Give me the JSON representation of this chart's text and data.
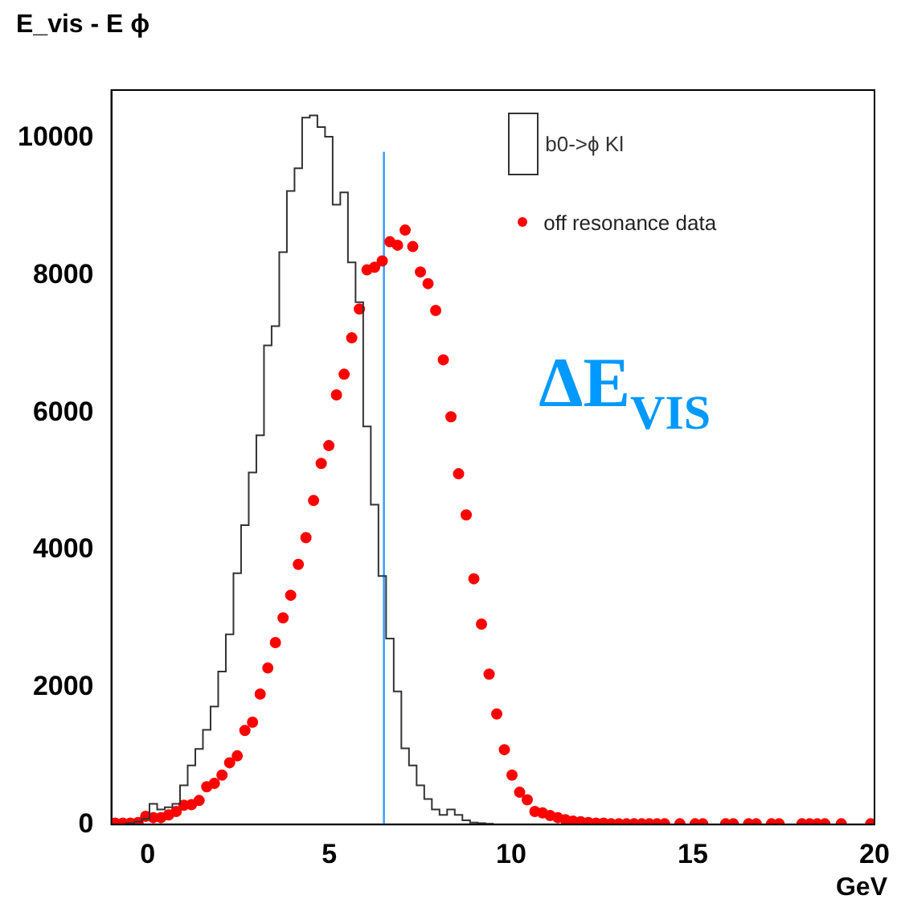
{
  "chart_data": {
    "type": "histogram",
    "title": "E_vis - E ϕ",
    "xlabel": "GeV",
    "annotations": [
      "ΔE$_{VIS}$"
    ],
    "xlim": [
      -1,
      20
    ],
    "xticks": [
      0,
      5,
      10,
      15,
      20
    ],
    "ylim": [
      0,
      10700
    ],
    "yticks": [
      0,
      2000,
      4000,
      6000,
      8000,
      10000
    ],
    "legend": "top right",
    "series": [
      {
        "name": "b0->ϕ Kl",
        "color": "#333333",
        "bins": [
          -1,
          -0.79,
          -0.58,
          -0.37,
          -0.16,
          0.05,
          0.26,
          0.47,
          0.68,
          0.89,
          1.1,
          1.31,
          1.52,
          1.73,
          1.94,
          2.15,
          2.36,
          2.57,
          2.78,
          2.99,
          3.2,
          3.41,
          3.62,
          3.83,
          4.04,
          4.25,
          4.46,
          4.67,
          4.88,
          5.09,
          5.3,
          5.51,
          5.72,
          5.93,
          6.14,
          6.35,
          6.56,
          6.77,
          6.98,
          7.19,
          7.4,
          7.61,
          7.82,
          8.03,
          8.24,
          8.45,
          8.66,
          8.87,
          9.08,
          9.29,
          9.5,
          9.71,
          9.92,
          10.13,
          10.34,
          10.55,
          10.76,
          10.97,
          11.18,
          11.39,
          11.6,
          11.81,
          12.02,
          12.23,
          12.44,
          12.65,
          12.86,
          13.07,
          13.28,
          13.49,
          13.7,
          13.91,
          14.12,
          14.33,
          14.54,
          14.75,
          14.96,
          15.17,
          15.38,
          15.59,
          15.8,
          16.01,
          16.22,
          16.43,
          16.64,
          16.85,
          17.06,
          17.27,
          17.48,
          17.69,
          17.9,
          18.11,
          18.32,
          18.53,
          18.74,
          18.95,
          19.16,
          19.37,
          19.58,
          19.79,
          20
        ],
        "values": [
          0,
          0,
          20,
          40,
          80,
          300,
          220,
          250,
          300,
          570,
          860,
          1100,
          1380,
          1720,
          2230,
          2770,
          3660,
          4360,
          5130,
          5670,
          6980,
          7260,
          8340,
          9230,
          9560,
          10300,
          10330,
          10160,
          10020,
          9030,
          9210,
          8190,
          7610,
          5800,
          4660,
          3620,
          2710,
          1940,
          1110,
          860,
          570,
          370,
          220,
          140,
          220,
          140,
          60,
          30,
          20,
          10,
          0,
          0,
          0,
          0,
          0,
          0,
          0,
          0,
          0,
          0,
          0,
          0,
          0,
          0,
          0,
          0,
          0,
          0,
          0,
          0,
          0,
          0,
          0,
          0,
          0,
          0,
          0,
          0,
          0,
          0,
          0,
          0,
          0,
          0,
          0,
          0,
          0,
          0,
          0,
          0,
          0,
          0,
          0,
          0,
          0,
          0,
          0,
          0,
          0,
          0
        ]
      },
      {
        "type": "scatter",
        "name": "off resonance data",
        "color": "#ff0000",
        "marker": "circle",
        "x": [
          -0.895,
          -0.685,
          -0.475,
          -0.265,
          -0.055,
          0.155,
          0.365,
          0.575,
          0.785,
          0.995,
          1.205,
          1.415,
          1.625,
          1.835,
          2.045,
          2.255,
          2.465,
          2.675,
          2.885,
          3.095,
          3.305,
          3.515,
          3.725,
          3.935,
          4.145,
          4.355,
          4.565,
          4.775,
          4.985,
          5.195,
          5.405,
          5.615,
          5.825,
          6.035,
          6.245,
          6.455,
          6.665,
          6.875,
          7.085,
          7.295,
          7.505,
          7.715,
          7.925,
          8.135,
          8.345,
          8.555,
          8.765,
          8.975,
          9.185,
          9.395,
          9.605,
          9.815,
          10.025,
          10.235,
          10.445,
          10.655,
          10.865,
          11.075,
          11.285,
          11.495,
          11.705,
          11.915,
          12.125,
          12.335,
          12.545,
          12.755,
          12.965,
          13.175,
          13.385,
          13.595,
          13.805,
          14.015,
          14.225,
          14.645,
          15.065,
          15.275,
          15.905,
          16.115,
          16.535,
          16.745,
          17.165,
          17.375,
          18.005,
          18.215,
          18.425,
          18.635,
          19.085,
          19.895
        ],
        "values": [
          20,
          20,
          20,
          30,
          120,
          100,
          100,
          140,
          190,
          280,
          290,
          350,
          550,
          600,
          720,
          900,
          1000,
          1370,
          1490,
          1900,
          2280,
          2650,
          3010,
          3340,
          3790,
          4180,
          4720,
          5260,
          5520,
          6260,
          6560,
          7090,
          7510,
          8080,
          8120,
          8210,
          8490,
          8440,
          8660,
          8420,
          8050,
          7880,
          7490,
          6770,
          5940,
          5110,
          4510,
          3580,
          2920,
          2190,
          1610,
          1090,
          720,
          470,
          360,
          190,
          170,
          130,
          100,
          70,
          50,
          40,
          30,
          20,
          20,
          10,
          10,
          10,
          10,
          10,
          10,
          10,
          10,
          10,
          10,
          10,
          10,
          10,
          10,
          10,
          10,
          10,
          10,
          10,
          10,
          10,
          10,
          10
        ]
      },
      {
        "type": "line",
        "color": "#3399ff",
        "x": [
          6.5,
          6.5
        ],
        "values": [
          0,
          9800
        ]
      }
    ]
  }
}
